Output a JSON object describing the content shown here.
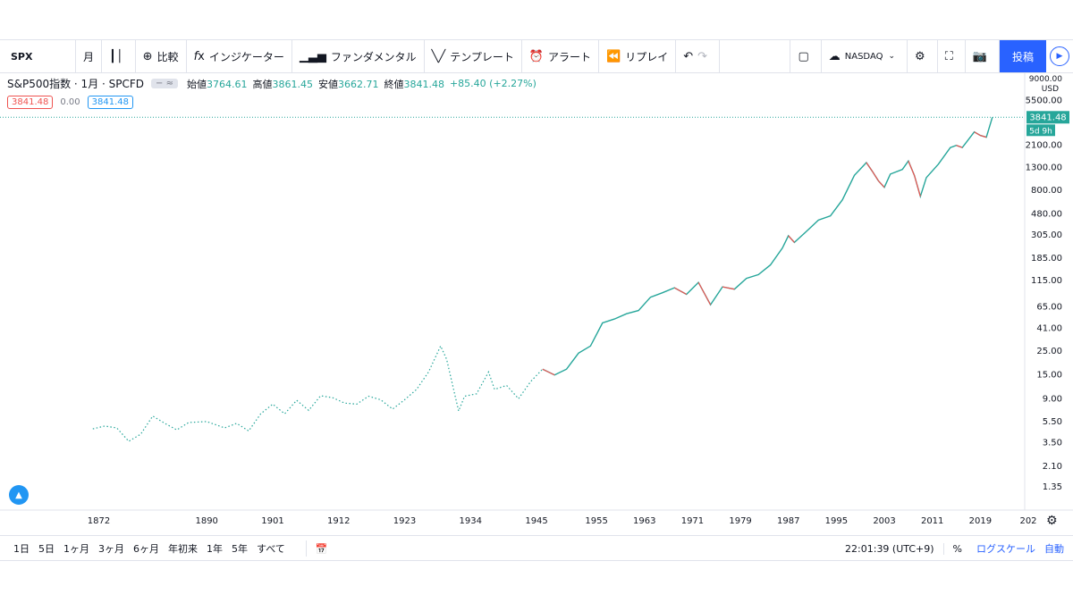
{
  "toolbar": {
    "symbol": "SPX",
    "interval": "月",
    "compare_label": "比較",
    "indicator_label": "インジケーター",
    "fundamental_label": "ファンダメンタル",
    "template_label": "テンプレート",
    "alert_label": "アラート",
    "replay_label": "リプレイ",
    "exchange": "NASDAQ",
    "publish_label": "投稿"
  },
  "legend": {
    "name": "S&P500指数 · 1月 · SPCFD",
    "open_label": "始値",
    "open": "3764.61",
    "high_label": "高値",
    "high": "3861.45",
    "low_label": "安値",
    "low": "3662.71",
    "close_label": "終値",
    "close": "3841.48",
    "change": "+85.40 (+2.27%)",
    "price_left": "3841.48",
    "price_mid": "0.00",
    "price_right": "3841.48"
  },
  "price_axis": {
    "currency_top": "USD",
    "top_partial": "9000.00",
    "last_price": "3841.48",
    "countdown": "5d 9h",
    "ticks": [
      "5500.00",
      "2100.00",
      "1300.00",
      "800.00",
      "480.00",
      "305.00",
      "185.00",
      "115.00",
      "65.00",
      "41.00",
      "25.00",
      "15.00",
      "9.00",
      "5.50",
      "3.50",
      "2.10",
      "1.35"
    ]
  },
  "chart_data": {
    "type": "line",
    "scale": "log",
    "x_ticks": [
      "1872",
      "1890",
      "1901",
      "1912",
      "1923",
      "1934",
      "1945",
      "1955",
      "1963",
      "1971",
      "1979",
      "1987",
      "1995",
      "2003",
      "2011",
      "2019",
      "202"
    ],
    "series": [
      {
        "x": [
          1871,
          1873,
          1875,
          1877,
          1879,
          1881,
          1883,
          1885,
          1887,
          1890,
          1893,
          1895,
          1897,
          1899,
          1901,
          1903,
          1905,
          1907,
          1909,
          1911,
          1913,
          1915,
          1917,
          1919,
          1921,
          1923,
          1925,
          1927,
          1929,
          1930,
          1932,
          1933,
          1935,
          1937,
          1938,
          1940,
          1942,
          1944,
          1946,
          1948,
          1950,
          1952,
          1954,
          1956,
          1958,
          1960,
          1962,
          1964,
          1966,
          1968,
          1970,
          1972,
          1974,
          1976,
          1978,
          1980,
          1982,
          1984,
          1986,
          1987,
          1988,
          1990,
          1992,
          1994,
          1996,
          1998,
          2000,
          2001,
          2002,
          2003,
          2004,
          2006,
          2007,
          2008,
          2009,
          2010,
          2012,
          2014,
          2015,
          2016,
          2018,
          2019,
          2020,
          2021
        ],
        "y": [
          4.7,
          5.0,
          4.8,
          3.6,
          4.2,
          6.2,
          5.3,
          4.6,
          5.4,
          5.5,
          4.8,
          5.3,
          4.5,
          6.5,
          8.0,
          6.5,
          8.7,
          7.0,
          9.6,
          9.2,
          8.2,
          8.0,
          9.5,
          8.8,
          7.2,
          8.8,
          11,
          16,
          28,
          21,
          6.9,
          9.5,
          10,
          16,
          11,
          12,
          9.0,
          13,
          17,
          15,
          17,
          24,
          28,
          46,
          50,
          56,
          60,
          80,
          88,
          98,
          85,
          110,
          68,
          100,
          95,
          120,
          130,
          160,
          230,
          300,
          260,
          330,
          420,
          460,
          650,
          1100,
          1450,
          1200,
          980,
          850,
          1130,
          1250,
          1500,
          1100,
          700,
          1050,
          1400,
          2000,
          2100,
          2000,
          2800,
          2600,
          2500,
          3841
        ]
      }
    ],
    "ylim": [
      1.35,
      9000
    ],
    "xlim": [
      1860,
      2027
    ]
  },
  "bottombar": {
    "ranges": [
      "1日",
      "5日",
      "1ヶ月",
      "3ヶ月",
      "6ヶ月",
      "年初来",
      "1年",
      "5年",
      "すべて"
    ],
    "time": "22:01:39 (UTC+9)",
    "percent": "%",
    "log_label": "ログスケール",
    "auto_label": "自動"
  },
  "colors": {
    "up": "#26a69a",
    "down": "#ef5350",
    "accent": "#2962ff"
  }
}
